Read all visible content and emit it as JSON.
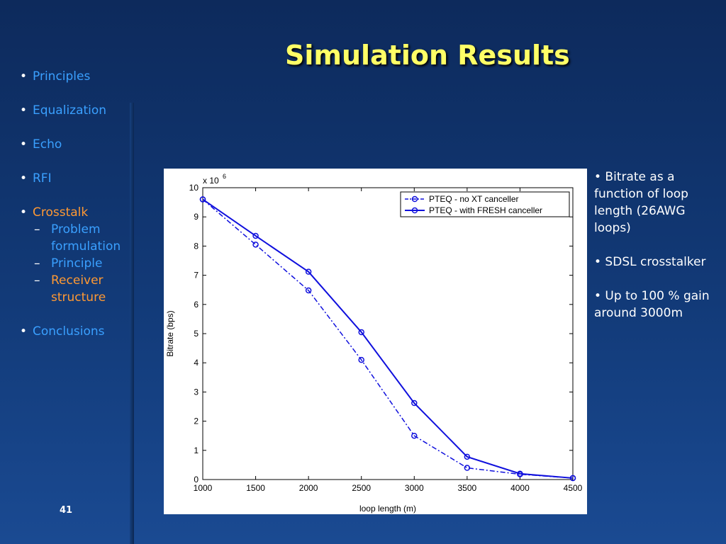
{
  "slide": {
    "title": "Simulation Results",
    "page_number": "41"
  },
  "nav": {
    "items": [
      {
        "label": "Principles"
      },
      {
        "label": "Equalization"
      },
      {
        "label": "Echo"
      },
      {
        "label": "RFI"
      },
      {
        "label": "Crosstalk"
      },
      {
        "label": "Conclusions"
      }
    ],
    "sub_items": [
      {
        "label": "Problem formulation"
      },
      {
        "label": "Principle"
      },
      {
        "label": "Receiver structure"
      }
    ]
  },
  "notes": [
    "• Bitrate as a function of loop length (26AWG loops)",
    "• SDSL crosstalker",
    "• Up to 100 % gain around 3000m"
  ],
  "chart_data": {
    "type": "line",
    "xlabel": "loop length (m)",
    "ylabel": "Bitrate (bps)",
    "y_multiplier": "x 10",
    "y_exponent": "6",
    "xlim": [
      1000,
      4500
    ],
    "ylim": [
      0,
      10
    ],
    "x_ticks": [
      1000,
      1500,
      2000,
      2500,
      3000,
      3500,
      4000,
      4500
    ],
    "y_ticks": [
      0,
      1,
      2,
      3,
      4,
      5,
      6,
      7,
      8,
      9,
      10
    ],
    "x": [
      1000,
      1500,
      2000,
      2500,
      3000,
      3500,
      4000,
      4500
    ],
    "series": [
      {
        "name": "PTEQ - no XT canceller",
        "style": "dashdot",
        "values": [
          9.6,
          8.05,
          6.48,
          4.1,
          1.5,
          0.4,
          0.18,
          0.05
        ]
      },
      {
        "name": "PTEQ - with FRESH canceller",
        "style": "solid",
        "values": [
          9.6,
          8.35,
          7.12,
          5.05,
          2.62,
          0.78,
          0.2,
          0.05
        ]
      }
    ],
    "legend_position": "top-right",
    "grid": false,
    "colors": {
      "line": "#1010dd",
      "axis": "#000000"
    }
  }
}
